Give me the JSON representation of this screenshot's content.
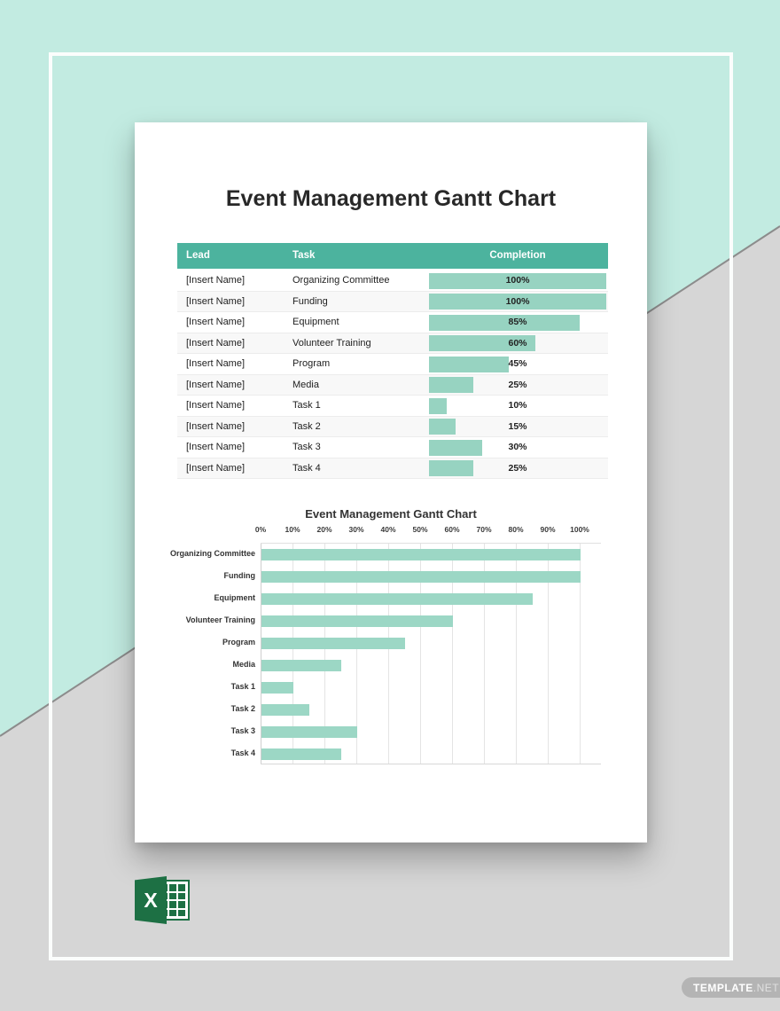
{
  "document": {
    "title": "Event Management Gantt Chart"
  },
  "table": {
    "headers": {
      "lead": "Lead",
      "task": "Task",
      "completion": "Completion"
    },
    "rows": [
      {
        "lead": "[Insert Name]",
        "task": "Organizing Committee",
        "completion_percent": 100,
        "completion_label": "100%"
      },
      {
        "lead": "[Insert Name]",
        "task": "Funding",
        "completion_percent": 100,
        "completion_label": "100%"
      },
      {
        "lead": "[Insert Name]",
        "task": "Equipment",
        "completion_percent": 85,
        "completion_label": "85%"
      },
      {
        "lead": "[Insert Name]",
        "task": "Volunteer Training",
        "completion_percent": 60,
        "completion_label": "60%"
      },
      {
        "lead": "[Insert Name]",
        "task": "Program",
        "completion_percent": 45,
        "completion_label": "45%"
      },
      {
        "lead": "[Insert Name]",
        "task": "Media",
        "completion_percent": 25,
        "completion_label": "25%"
      },
      {
        "lead": "[Insert Name]",
        "task": "Task 1",
        "completion_percent": 10,
        "completion_label": "10%"
      },
      {
        "lead": "[Insert Name]",
        "task": "Task 2",
        "completion_percent": 15,
        "completion_label": "15%"
      },
      {
        "lead": "[Insert Name]",
        "task": "Task 3",
        "completion_percent": 30,
        "completion_label": "30%"
      },
      {
        "lead": "[Insert Name]",
        "task": "Task 4",
        "completion_percent": 25,
        "completion_label": "25%"
      }
    ]
  },
  "chart_data": {
    "type": "bar",
    "orientation": "horizontal",
    "title": "Event Management Gantt Chart",
    "categories": [
      "Organizing Committee",
      "Funding",
      "Equipment",
      "Volunteer Training",
      "Program",
      "Media",
      "Task 1",
      "Task 2",
      "Task 3",
      "Task 4"
    ],
    "values": [
      100,
      100,
      85,
      60,
      45,
      25,
      10,
      15,
      30,
      25
    ],
    "x_ticks": [
      "0%",
      "10%",
      "20%",
      "30%",
      "40%",
      "50%",
      "60%",
      "70%",
      "80%",
      "90%",
      "100%"
    ],
    "xlim": [
      0,
      100
    ],
    "grid": true,
    "axis_position": "top",
    "legend": false
  },
  "branding": {
    "excel_letter": "X",
    "watermark_bold": "TEMPLATE",
    "watermark_light": ".NET"
  },
  "colors": {
    "mint_background": "#c2ebe1",
    "gray_background": "#d6d6d6",
    "diagonal_line": "#8c8c8c",
    "table_header": "#4cb39e",
    "table_bar": "#97d3c1",
    "chart_bar": "#9cd7c5",
    "excel_green": "#1d7044",
    "watermark_pill": "#b4b4b4"
  }
}
